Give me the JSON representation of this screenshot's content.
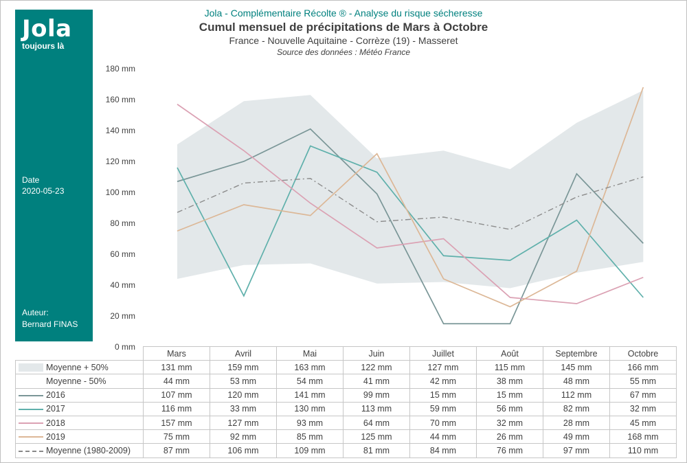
{
  "sidebar": {
    "logo": "Jola",
    "tagline": "toujours là",
    "date_label": "Date",
    "date_value": "2020-05-23",
    "author_label": "Auteur:",
    "author_value": "Bernard FINAS"
  },
  "header": {
    "line1": "Jola - Complémentaire  Récolte ® - Analyse du risque sécheresse",
    "title": "Cumul mensuel de précipitations de Mars à Octobre",
    "subtitle": "France - Nouvelle Aquitaine - Corrèze (19) - Masseret",
    "source": "Source des données : Météo France"
  },
  "chart_data": {
    "type": "line",
    "categories": [
      "Mars",
      "Avril",
      "Mai",
      "Juin",
      "Juillet",
      "Août",
      "Septembre",
      "Octobre"
    ],
    "ylim": [
      0,
      180
    ],
    "yticks": [
      "0 mm",
      "20 mm",
      "40 mm",
      "60 mm",
      "80 mm",
      "100 mm",
      "120 mm",
      "140 mm",
      "160 mm",
      "180 mm"
    ],
    "unit": " mm",
    "band": {
      "upper": {
        "name": "Moyenne + 50%",
        "values": [
          131,
          159,
          163,
          122,
          127,
          115,
          145,
          166
        ]
      },
      "lower": {
        "name": "Moyenne - 50%",
        "values": [
          44,
          53,
          54,
          41,
          42,
          38,
          48,
          55
        ]
      },
      "color": "#e3e8ea"
    },
    "series": [
      {
        "name": "2016",
        "color": "#7a9697",
        "values": [
          107,
          120,
          141,
          99,
          15,
          15,
          112,
          67
        ]
      },
      {
        "name": "2017",
        "color": "#5fb0ab",
        "values": [
          116,
          33,
          130,
          113,
          59,
          56,
          82,
          32
        ]
      },
      {
        "name": "2018",
        "color": "#dba1b3",
        "values": [
          157,
          127,
          93,
          64,
          70,
          32,
          28,
          45
        ]
      },
      {
        "name": "2019",
        "color": "#dcb796",
        "values": [
          75,
          92,
          85,
          125,
          44,
          26,
          49,
          168
        ]
      },
      {
        "name": "Moyenne (1980-2009)",
        "color": "#8c8c8c",
        "dashed": true,
        "values": [
          87,
          106,
          109,
          81,
          84,
          76,
          97,
          110
        ]
      }
    ]
  }
}
